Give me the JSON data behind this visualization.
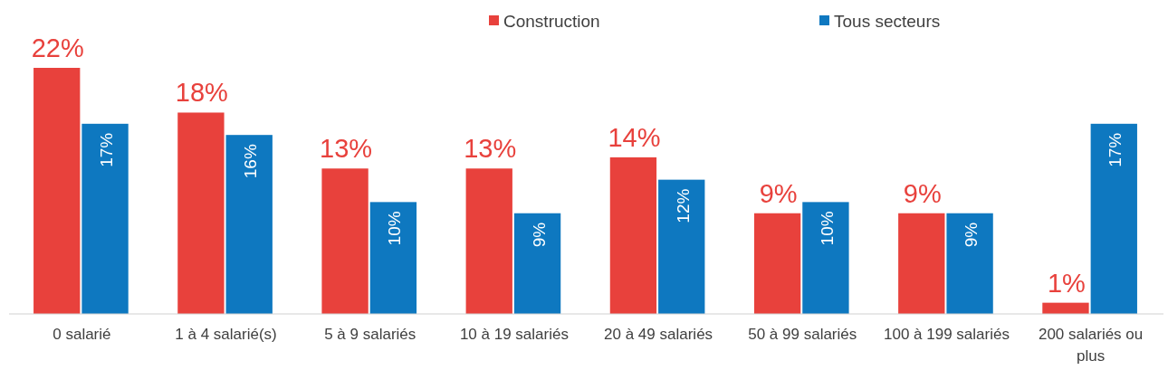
{
  "chart_data": {
    "type": "bar",
    "categories": [
      "0 salarié",
      "1 à 4 salarié(s)",
      "5 à 9 salariés",
      "10 à 19 salariés",
      "20 à 49 salariés",
      "50 à 99 salariés",
      "100 à 199 salariés",
      "200 salariés ou plus"
    ],
    "series": [
      {
        "name": "Construction",
        "color": "#e8413c",
        "values": [
          22,
          18,
          13,
          13,
          14,
          9,
          9,
          1
        ],
        "value_labels": [
          "22%",
          "18%",
          "13%",
          "13%",
          "14%",
          "9%",
          "9%",
          "1%"
        ]
      },
      {
        "name": "Tous secteurs",
        "color": "#0e78c0",
        "values": [
          17,
          16,
          10,
          9,
          12,
          10,
          9,
          17
        ],
        "value_labels": [
          "17%",
          "16%",
          "10%",
          "9%",
          "12%",
          "10%",
          "9%",
          "17%"
        ]
      }
    ],
    "legend": "top"
  }
}
